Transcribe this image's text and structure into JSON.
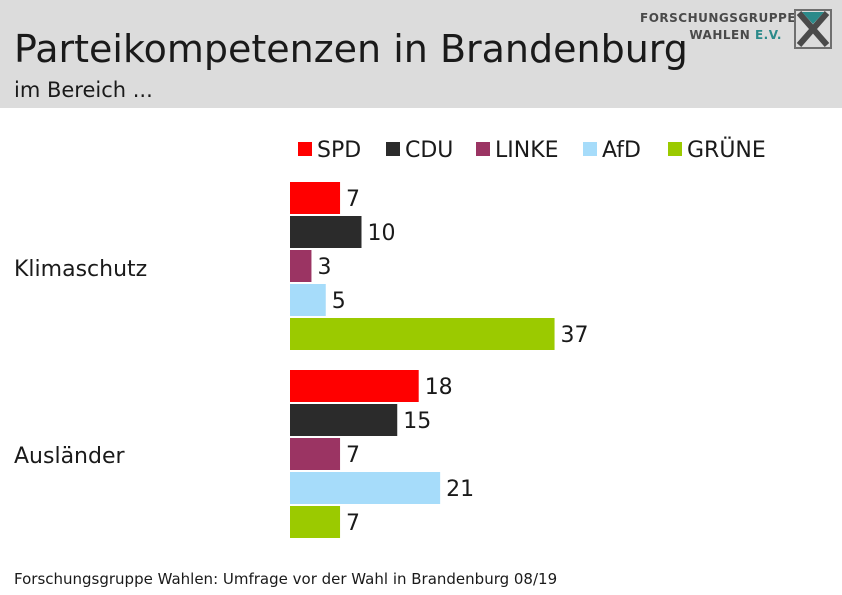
{
  "header": {
    "title": "Parteikompetenzen in Brandenburg",
    "subtitle": "im Bereich ...",
    "logo_line1": "FORSCHUNGSGRUPPE",
    "logo_line2a": "WAHLEN ",
    "logo_line2b": "E.V."
  },
  "footer": {
    "source": "Forschungsgruppe Wahlen: Umfrage vor der Wahl in Brandenburg 08/19"
  },
  "chart_data": {
    "type": "bar",
    "orientation": "horizontal",
    "categories": [
      "Klimaschutz",
      "Ausländer"
    ],
    "series": [
      {
        "name": "SPD",
        "color": "#ff0000",
        "values": [
          7,
          18
        ]
      },
      {
        "name": "CDU",
        "color": "#2b2b2b",
        "values": [
          10,
          15
        ]
      },
      {
        "name": "LINKE",
        "color": "#9b3463",
        "values": [
          3,
          7
        ]
      },
      {
        "name": "AfD",
        "color": "#a6dcfa",
        "values": [
          5,
          21
        ]
      },
      {
        "name": "GRÜNE",
        "color": "#9bca00",
        "values": [
          37,
          7
        ]
      }
    ],
    "legend_position": "top",
    "grid": false,
    "data_labels": true
  }
}
